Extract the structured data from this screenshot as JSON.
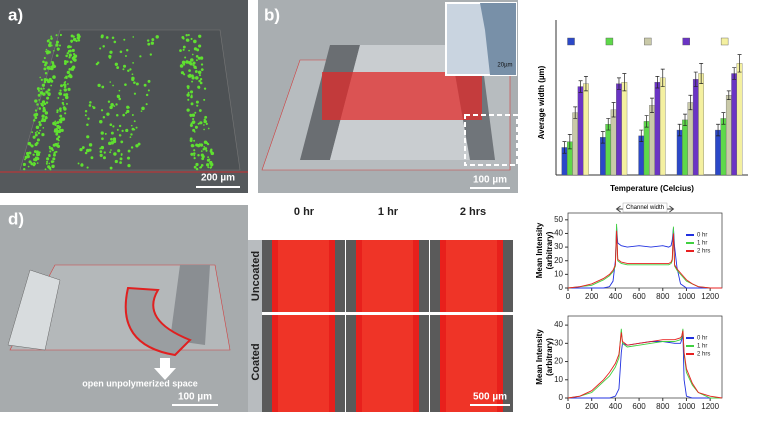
{
  "panels": {
    "a": {
      "label": "a)",
      "scale": "200 µm"
    },
    "b": {
      "label": "b)",
      "scale": "100 µm",
      "inset_scale": "20µm"
    },
    "d": {
      "label": "d)",
      "scale": "100 µm",
      "annotation": "open unpolymerized space"
    },
    "fluorescence": {
      "columns": [
        "0 hr",
        "1 hr",
        "2 hrs"
      ],
      "rows": [
        "Uncoated",
        "Coated"
      ],
      "scale": "500 µm"
    }
  },
  "chart_data": [
    {
      "type": "bar",
      "ylabel": "Average width (µm)",
      "xlabel": "Temperature (Celcius)",
      "categories": [
        null,
        null,
        null,
        null,
        null
      ],
      "ylim": [
        0,
        100
      ],
      "series": [
        {
          "color": "#2b48c8",
          "values": [
            19,
            26,
            27,
            31,
            31
          ],
          "errors": [
            4,
            4,
            4,
            4,
            4
          ]
        },
        {
          "color": "#5ed84a",
          "values": [
            23,
            35,
            37,
            38,
            39
          ],
          "errors": [
            5,
            4,
            4,
            4,
            4
          ]
        },
        {
          "color": "#c9c9a8",
          "values": [
            43,
            45,
            48,
            50,
            55
          ],
          "errors": [
            4,
            5,
            5,
            5,
            3
          ]
        },
        {
          "color": "#6a34c4",
          "values": [
            61,
            63,
            64,
            66,
            70
          ],
          "errors": [
            4,
            4,
            4,
            5,
            4
          ]
        },
        {
          "color": "#f4f0a0",
          "values": [
            63,
            64,
            67,
            70,
            77
          ],
          "errors": [
            5,
            6,
            6,
            7,
            6
          ]
        }
      ]
    },
    {
      "type": "line",
      "ylabel": [
        "Mean Intensity",
        "(arbitrary)"
      ],
      "annotation": "Channel width",
      "xlim": [
        0,
        1300
      ],
      "xticks": [
        0,
        200,
        400,
        600,
        800,
        1000,
        1200
      ],
      "ylim": [
        0,
        55
      ],
      "yticks": [
        0,
        10,
        20,
        30,
        40,
        50
      ],
      "legend": "right",
      "x": [
        0,
        100,
        200,
        250,
        300,
        350,
        380,
        400,
        410,
        420,
        450,
        500,
        600,
        700,
        800,
        850,
        870,
        880,
        890,
        900,
        920,
        950,
        1000,
        1050,
        1100,
        1200,
        1300
      ],
      "series": [
        {
          "name": "0 hr",
          "color": "#2030e0",
          "values": [
            0,
            0,
            0,
            0,
            0,
            1,
            5,
            20,
            45,
            33,
            31,
            30,
            31,
            30,
            31,
            30,
            31,
            35,
            44,
            30,
            15,
            3,
            0,
            0,
            0,
            0,
            0
          ]
        },
        {
          "name": "1 hr",
          "color": "#40d040",
          "values": [
            0,
            1,
            2,
            4,
            6,
            9,
            12,
            16,
            47,
            20,
            18,
            17,
            17,
            17,
            17,
            17,
            18,
            20,
            45,
            16,
            13,
            10,
            5,
            3,
            1,
            0,
            0
          ]
        },
        {
          "name": "2 hrs",
          "color": "#e82020",
          "values": [
            0,
            1,
            3,
            5,
            7,
            10,
            13,
            17,
            42,
            21,
            19,
            18,
            18,
            18,
            18,
            18,
            19,
            21,
            40,
            17,
            14,
            11,
            6,
            3,
            1,
            0,
            0
          ]
        }
      ]
    },
    {
      "type": "line",
      "ylabel": [
        "Mean Intensity",
        "(arbitrary)"
      ],
      "xlim": [
        0,
        1300
      ],
      "xticks": [
        0,
        200,
        400,
        600,
        800,
        1000,
        1200
      ],
      "ylim": [
        0,
        45
      ],
      "yticks": [
        0,
        10,
        20,
        30,
        40
      ],
      "legend": "right",
      "x": [
        0,
        100,
        200,
        250,
        300,
        350,
        400,
        430,
        450,
        460,
        500,
        600,
        700,
        800,
        900,
        950,
        960,
        970,
        980,
        1000,
        1050,
        1100,
        1200,
        1300
      ],
      "series": [
        {
          "name": "0 hr",
          "color": "#2030e0",
          "values": [
            0,
            0,
            0,
            0,
            0,
            0,
            1,
            5,
            25,
            30,
            29,
            30,
            31,
            31,
            30,
            30,
            32,
            35,
            10,
            1,
            0,
            0,
            0,
            0
          ]
        },
        {
          "name": "1 hr",
          "color": "#40d040",
          "values": [
            0,
            1,
            3,
            6,
            9,
            12,
            17,
            22,
            38,
            30,
            28,
            29,
            30,
            31,
            31,
            32,
            33,
            38,
            24,
            14,
            7,
            3,
            0,
            0
          ]
        },
        {
          "name": "2 hrs",
          "color": "#e82020",
          "values": [
            0,
            1,
            4,
            7,
            10,
            14,
            19,
            24,
            36,
            31,
            29,
            30,
            31,
            32,
            32,
            33,
            34,
            37,
            25,
            16,
            8,
            3,
            1,
            0
          ]
        }
      ]
    }
  ]
}
